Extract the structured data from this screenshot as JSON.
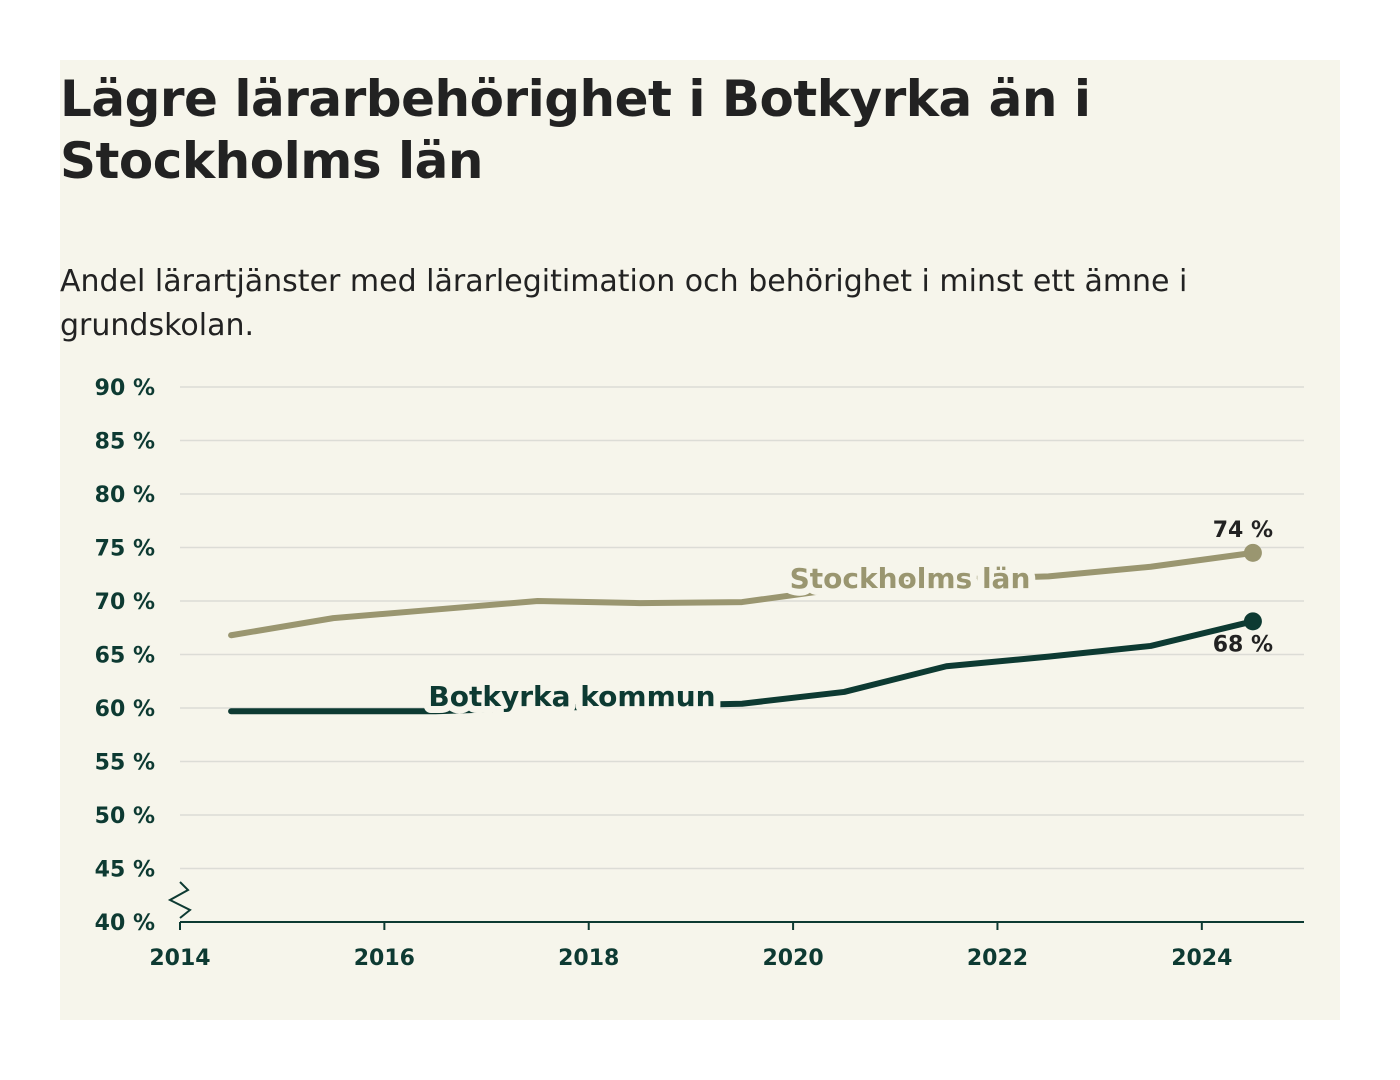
{
  "title": "Lägre lärarbehörighet i Botkyrka än i Stockholms län",
  "subtitle": "Andel lärartjänster med lärarlegitimation och behörighet i minst ett ämne i grundskolan.",
  "colors": {
    "background": "#f6f5eb",
    "stockholm": "#9a9670",
    "botkyrka": "#0d3a32",
    "grid": "#dcdcd6",
    "axis": "#0d3a32"
  },
  "chart_data": {
    "type": "line",
    "title": "Lägre lärarbehörighet i Botkyrka än i Stockholms län",
    "subtitle": "Andel lärartjänster med lärarlegitimation och behörighet i minst ett ämne i grundskolan.",
    "xlim": [
      2014,
      2025
    ],
    "ylim": [
      40,
      90
    ],
    "x_ticks": [
      "2014",
      "2016",
      "2018",
      "2020",
      "2022",
      "2024"
    ],
    "y_ticks": [
      "90 %",
      "85 %",
      "80 %",
      "75 %",
      "70 %",
      "65 %",
      "60 %",
      "55 %",
      "50 %",
      "45 %",
      "40 %"
    ],
    "y_axis_break": true,
    "grid": true,
    "series": [
      {
        "name": "Stockholms län",
        "color": "#9a9670",
        "x": [
          2014.5,
          2015.5,
          2016.5,
          2017.5,
          2018.5,
          2019.5,
          2020.5,
          2021.5,
          2022.5,
          2023.5,
          2024.5
        ],
        "values": [
          66.8,
          68.4,
          69.2,
          70.0,
          69.8,
          69.9,
          71.2,
          72.0,
          72.3,
          73.2,
          74.5
        ],
        "end_label": "74 %"
      },
      {
        "name": "Botkyrka kommun",
        "color": "#0d3a32",
        "x": [
          2014.5,
          2015.5,
          2016.5,
          2017.5,
          2018.5,
          2019.5,
          2020.5,
          2021.5,
          2022.5,
          2023.5,
          2024.5
        ],
        "values": [
          59.7,
          59.7,
          59.7,
          60.0,
          60.2,
          60.4,
          61.5,
          63.9,
          64.8,
          65.8,
          68.1
        ],
        "end_label": "68 %"
      }
    ]
  }
}
